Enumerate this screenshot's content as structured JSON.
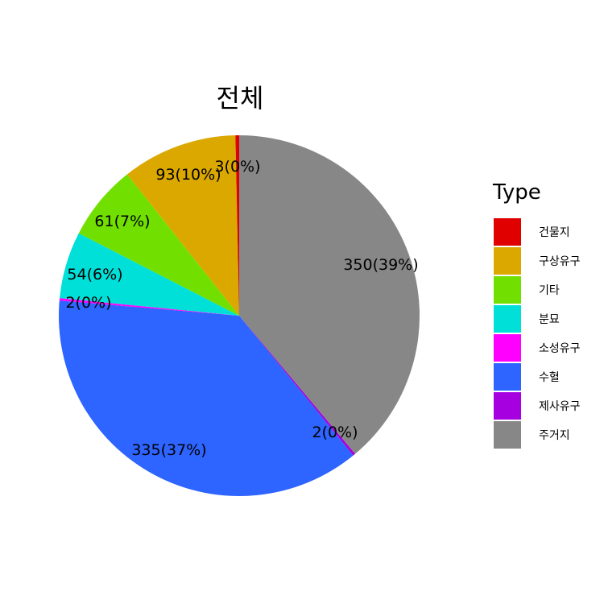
{
  "chart_data": {
    "type": "pie",
    "title": "전체",
    "legend_title": "Type",
    "legend_position": "right",
    "start_angle_note": "clockwise from top",
    "slices": [
      {
        "category": "주거지",
        "value": 350,
        "label": "350(39%)",
        "color": "#878787"
      },
      {
        "category": "제사유구",
        "value": 2,
        "label": "2(0%)",
        "color": "#A600E0"
      },
      {
        "category": "수혈",
        "value": 335,
        "label": "335(37%)",
        "color": "#2E64FF"
      },
      {
        "category": "소성유구",
        "value": 2,
        "label": "2(0%)",
        "color": "#FF00FF"
      },
      {
        "category": "분묘",
        "value": 54,
        "label": "54(6%)",
        "color": "#00E0D8"
      },
      {
        "category": "기타",
        "value": 61,
        "label": "61(7%)",
        "color": "#71E000"
      },
      {
        "category": "구상유구",
        "value": 93,
        "label": "93(10%)",
        "color": "#DBA800"
      },
      {
        "category": "건물지",
        "value": 3,
        "label": "3(0%)",
        "color": "#E00000"
      }
    ],
    "legend": [
      {
        "name": "건물지",
        "color": "#E00000"
      },
      {
        "name": "구상유구",
        "color": "#DBA800"
      },
      {
        "name": "기타",
        "color": "#71E000"
      },
      {
        "name": "분묘",
        "color": "#00E0D8"
      },
      {
        "name": "소성유구",
        "color": "#FF00FF"
      },
      {
        "name": "수혈",
        "color": "#2E64FF"
      },
      {
        "name": "제사유구",
        "color": "#A600E0"
      },
      {
        "name": "주거지",
        "color": "#878787"
      }
    ]
  }
}
